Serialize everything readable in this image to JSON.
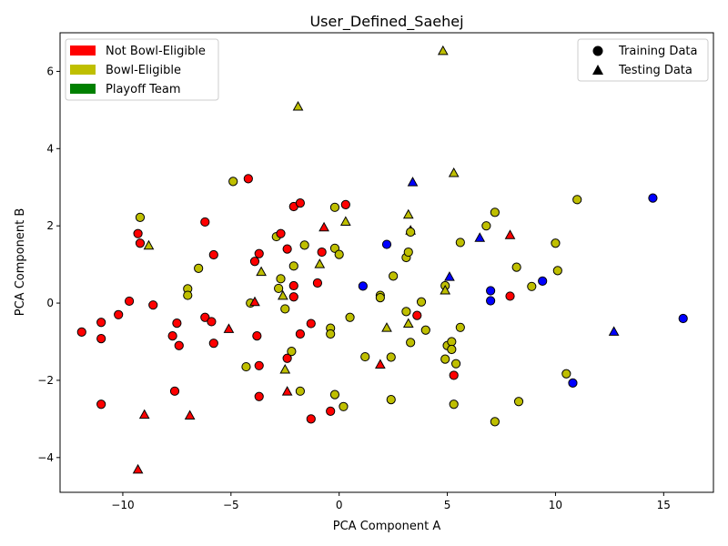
{
  "chart_data": {
    "type": "scatter",
    "title": "User_Defined_Saehej",
    "xlabel": "PCA Component A",
    "ylabel": "PCA Component B",
    "xlim": [
      -12.9,
      17.3
    ],
    "ylim": [
      -4.9,
      7.0
    ],
    "x_ticks": [
      -10,
      -5,
      0,
      5,
      10,
      15
    ],
    "y_ticks": [
      -4,
      -2,
      0,
      2,
      4,
      6
    ],
    "x_tick_labels": [
      "−10",
      "−5",
      "0",
      "5",
      "10",
      "15"
    ],
    "y_tick_labels": [
      "−4",
      "−2",
      "0",
      "2",
      "4",
      "6"
    ],
    "grid": false,
    "colors": {
      "not_bowl_eligible": "#ff0000",
      "bowl_eligible": "#bfbf00",
      "playoff_team": "#008000",
      "blue_class": "#0000ff",
      "marker_edge": "#000000"
    },
    "legend_classes": {
      "placement": "top-left",
      "entries": [
        {
          "label": "Not Bowl-Eligible",
          "color": "#ff0000"
        },
        {
          "label": "Bowl-Eligible",
          "color": "#bfbf00"
        },
        {
          "label": "Playoff Team",
          "color": "#008000"
        }
      ]
    },
    "legend_markers": {
      "placement": "top-right",
      "entries": [
        {
          "label": "Training Data",
          "marker": "circle"
        },
        {
          "label": "Testing Data",
          "marker": "triangle"
        }
      ]
    },
    "points": [
      {
        "x": -11.9,
        "y": -0.75,
        "c": "red",
        "m": "o"
      },
      {
        "x": -11.0,
        "y": -0.5,
        "c": "red",
        "m": "o"
      },
      {
        "x": -11.0,
        "y": -0.92,
        "c": "red",
        "m": "o"
      },
      {
        "x": -11.0,
        "y": -2.62,
        "c": "red",
        "m": "o"
      },
      {
        "x": -10.2,
        "y": -0.3,
        "c": "red",
        "m": "o"
      },
      {
        "x": -9.7,
        "y": 0.05,
        "c": "red",
        "m": "o"
      },
      {
        "x": -9.3,
        "y": 1.8,
        "c": "red",
        "m": "o"
      },
      {
        "x": -9.2,
        "y": 1.55,
        "c": "red",
        "m": "o"
      },
      {
        "x": -9.2,
        "y": 2.22,
        "c": "yellow",
        "m": "o"
      },
      {
        "x": -8.8,
        "y": 1.48,
        "c": "yellow",
        "m": "^"
      },
      {
        "x": -8.6,
        "y": -0.05,
        "c": "red",
        "m": "o"
      },
      {
        "x": -9.0,
        "y": -2.9,
        "c": "red",
        "m": "^"
      },
      {
        "x": -9.3,
        "y": -4.32,
        "c": "red",
        "m": "^"
      },
      {
        "x": -7.7,
        "y": -0.85,
        "c": "red",
        "m": "o"
      },
      {
        "x": -7.6,
        "y": -2.28,
        "c": "red",
        "m": "o"
      },
      {
        "x": -7.5,
        "y": -0.52,
        "c": "red",
        "m": "o"
      },
      {
        "x": -7.4,
        "y": -1.1,
        "c": "red",
        "m": "o"
      },
      {
        "x": -7.0,
        "y": 0.37,
        "c": "yellow",
        "m": "o"
      },
      {
        "x": -7.0,
        "y": 0.2,
        "c": "yellow",
        "m": "o"
      },
      {
        "x": -6.9,
        "y": -2.92,
        "c": "red",
        "m": "^"
      },
      {
        "x": -6.5,
        "y": 0.9,
        "c": "yellow",
        "m": "o"
      },
      {
        "x": -6.2,
        "y": 2.1,
        "c": "red",
        "m": "o"
      },
      {
        "x": -6.2,
        "y": -0.37,
        "c": "red",
        "m": "o"
      },
      {
        "x": -5.9,
        "y": -0.48,
        "c": "red",
        "m": "o"
      },
      {
        "x": -5.8,
        "y": 1.25,
        "c": "red",
        "m": "o"
      },
      {
        "x": -5.8,
        "y": -1.04,
        "c": "red",
        "m": "o"
      },
      {
        "x": -5.1,
        "y": -0.68,
        "c": "red",
        "m": "^"
      },
      {
        "x": -4.9,
        "y": 3.15,
        "c": "yellow",
        "m": "o"
      },
      {
        "x": -4.3,
        "y": -1.65,
        "c": "yellow",
        "m": "o"
      },
      {
        "x": -4.2,
        "y": 3.22,
        "c": "red",
        "m": "o"
      },
      {
        "x": -4.1,
        "y": 0.0,
        "c": "yellow",
        "m": "o"
      },
      {
        "x": -3.9,
        "y": 1.08,
        "c": "red",
        "m": "o"
      },
      {
        "x": -3.8,
        "y": -0.85,
        "c": "red",
        "m": "o"
      },
      {
        "x": -3.9,
        "y": 0.02,
        "c": "red",
        "m": "^"
      },
      {
        "x": -3.7,
        "y": 1.28,
        "c": "red",
        "m": "o"
      },
      {
        "x": -3.6,
        "y": 0.8,
        "c": "yellow",
        "m": "^"
      },
      {
        "x": -3.7,
        "y": -1.62,
        "c": "red",
        "m": "o"
      },
      {
        "x": -3.7,
        "y": -2.42,
        "c": "red",
        "m": "o"
      },
      {
        "x": -2.9,
        "y": 1.72,
        "c": "yellow",
        "m": "o"
      },
      {
        "x": -2.7,
        "y": 1.8,
        "c": "red",
        "m": "o"
      },
      {
        "x": -2.7,
        "y": 0.63,
        "c": "yellow",
        "m": "o"
      },
      {
        "x": -2.8,
        "y": 0.38,
        "c": "yellow",
        "m": "o"
      },
      {
        "x": -2.6,
        "y": 0.18,
        "c": "yellow",
        "m": "^"
      },
      {
        "x": -2.5,
        "y": -0.15,
        "c": "yellow",
        "m": "o"
      },
      {
        "x": -2.5,
        "y": -1.73,
        "c": "yellow",
        "m": "^"
      },
      {
        "x": -2.4,
        "y": 1.4,
        "c": "red",
        "m": "o"
      },
      {
        "x": -2.4,
        "y": -1.43,
        "c": "red",
        "m": "o"
      },
      {
        "x": -2.4,
        "y": -2.3,
        "c": "red",
        "m": "^"
      },
      {
        "x": -2.1,
        "y": 2.5,
        "c": "red",
        "m": "o"
      },
      {
        "x": -2.1,
        "y": 0.96,
        "c": "yellow",
        "m": "o"
      },
      {
        "x": -2.1,
        "y": 0.45,
        "c": "red",
        "m": "o"
      },
      {
        "x": -2.1,
        "y": 0.16,
        "c": "red",
        "m": "o"
      },
      {
        "x": -2.2,
        "y": -1.25,
        "c": "yellow",
        "m": "o"
      },
      {
        "x": -1.9,
        "y": 5.08,
        "c": "yellow",
        "m": "^"
      },
      {
        "x": -1.8,
        "y": 2.59,
        "c": "red",
        "m": "o"
      },
      {
        "x": -1.8,
        "y": -0.8,
        "c": "red",
        "m": "o"
      },
      {
        "x": -1.8,
        "y": -2.28,
        "c": "yellow",
        "m": "o"
      },
      {
        "x": -1.6,
        "y": 1.5,
        "c": "yellow",
        "m": "o"
      },
      {
        "x": -1.3,
        "y": -0.53,
        "c": "red",
        "m": "o"
      },
      {
        "x": -1.3,
        "y": -3.0,
        "c": "red",
        "m": "o"
      },
      {
        "x": -1.0,
        "y": 0.52,
        "c": "red",
        "m": "o"
      },
      {
        "x": -0.9,
        "y": 1.0,
        "c": "yellow",
        "m": "^"
      },
      {
        "x": -0.8,
        "y": 1.32,
        "c": "red",
        "m": "o"
      },
      {
        "x": -0.7,
        "y": 1.95,
        "c": "red",
        "m": "^"
      },
      {
        "x": -0.4,
        "y": -0.65,
        "c": "yellow",
        "m": "o"
      },
      {
        "x": -0.4,
        "y": -0.8,
        "c": "yellow",
        "m": "o"
      },
      {
        "x": -0.4,
        "y": -2.8,
        "c": "red",
        "m": "o"
      },
      {
        "x": -0.2,
        "y": 2.48,
        "c": "yellow",
        "m": "o"
      },
      {
        "x": -0.2,
        "y": 1.42,
        "c": "yellow",
        "m": "o"
      },
      {
        "x": -0.2,
        "y": -2.37,
        "c": "yellow",
        "m": "o"
      },
      {
        "x": 0.0,
        "y": 1.26,
        "c": "yellow",
        "m": "o"
      },
      {
        "x": 0.2,
        "y": -2.68,
        "c": "yellow",
        "m": "o"
      },
      {
        "x": 0.3,
        "y": 2.55,
        "c": "red",
        "m": "o"
      },
      {
        "x": 0.3,
        "y": 2.1,
        "c": "yellow",
        "m": "^"
      },
      {
        "x": 0.5,
        "y": -0.37,
        "c": "yellow",
        "m": "o"
      },
      {
        "x": 1.1,
        "y": 0.44,
        "c": "blue",
        "m": "o"
      },
      {
        "x": 1.2,
        "y": -1.39,
        "c": "yellow",
        "m": "o"
      },
      {
        "x": 1.9,
        "y": 0.2,
        "c": "yellow",
        "m": "o"
      },
      {
        "x": 1.9,
        "y": 0.14,
        "c": "yellow",
        "m": "o"
      },
      {
        "x": 1.9,
        "y": -1.6,
        "c": "red",
        "m": "^"
      },
      {
        "x": 2.2,
        "y": 1.52,
        "c": "blue",
        "m": "o"
      },
      {
        "x": 2.2,
        "y": -0.65,
        "c": "yellow",
        "m": "^"
      },
      {
        "x": 2.4,
        "y": -1.4,
        "c": "yellow",
        "m": "o"
      },
      {
        "x": 2.4,
        "y": -2.5,
        "c": "yellow",
        "m": "o"
      },
      {
        "x": 2.5,
        "y": 0.7,
        "c": "yellow",
        "m": "o"
      },
      {
        "x": 3.1,
        "y": 1.18,
        "c": "yellow",
        "m": "o"
      },
      {
        "x": 3.2,
        "y": 2.28,
        "c": "yellow",
        "m": "^"
      },
      {
        "x": 3.2,
        "y": 1.32,
        "c": "yellow",
        "m": "o"
      },
      {
        "x": 3.1,
        "y": -0.22,
        "c": "yellow",
        "m": "o"
      },
      {
        "x": 3.3,
        "y": 1.87,
        "c": "red",
        "m": "^"
      },
      {
        "x": 3.2,
        "y": -0.54,
        "c": "yellow",
        "m": "^"
      },
      {
        "x": 3.3,
        "y": -1.02,
        "c": "yellow",
        "m": "o"
      },
      {
        "x": 3.4,
        "y": 3.12,
        "c": "blue",
        "m": "^"
      },
      {
        "x": 3.3,
        "y": 1.84,
        "c": "yellow",
        "m": "o"
      },
      {
        "x": 3.6,
        "y": -0.32,
        "c": "red",
        "m": "o"
      },
      {
        "x": 3.8,
        "y": 0.03,
        "c": "yellow",
        "m": "o"
      },
      {
        "x": 4.0,
        "y": -0.7,
        "c": "yellow",
        "m": "o"
      },
      {
        "x": 4.8,
        "y": 6.52,
        "c": "yellow",
        "m": "^"
      },
      {
        "x": 4.9,
        "y": 0.45,
        "c": "yellow",
        "m": "o"
      },
      {
        "x": 4.9,
        "y": 0.32,
        "c": "yellow",
        "m": "^"
      },
      {
        "x": 4.9,
        "y": -1.45,
        "c": "yellow",
        "m": "o"
      },
      {
        "x": 5.0,
        "y": -1.1,
        "c": "yellow",
        "m": "o"
      },
      {
        "x": 5.1,
        "y": 0.67,
        "c": "blue",
        "m": "^"
      },
      {
        "x": 5.2,
        "y": -1.0,
        "c": "yellow",
        "m": "o"
      },
      {
        "x": 5.2,
        "y": -1.2,
        "c": "yellow",
        "m": "o"
      },
      {
        "x": 5.3,
        "y": 3.36,
        "c": "yellow",
        "m": "^"
      },
      {
        "x": 5.3,
        "y": -1.87,
        "c": "red",
        "m": "o"
      },
      {
        "x": 5.3,
        "y": -2.62,
        "c": "yellow",
        "m": "o"
      },
      {
        "x": 5.4,
        "y": -1.57,
        "c": "yellow",
        "m": "o"
      },
      {
        "x": 5.6,
        "y": 1.57,
        "c": "yellow",
        "m": "o"
      },
      {
        "x": 5.6,
        "y": -0.63,
        "c": "yellow",
        "m": "o"
      },
      {
        "x": 6.5,
        "y": 1.68,
        "c": "blue",
        "m": "^"
      },
      {
        "x": 6.8,
        "y": 2.0,
        "c": "yellow",
        "m": "o"
      },
      {
        "x": 7.0,
        "y": 0.32,
        "c": "blue",
        "m": "o"
      },
      {
        "x": 7.0,
        "y": 0.06,
        "c": "blue",
        "m": "o"
      },
      {
        "x": 7.2,
        "y": 2.35,
        "c": "yellow",
        "m": "o"
      },
      {
        "x": 7.2,
        "y": -3.07,
        "c": "yellow",
        "m": "o"
      },
      {
        "x": 7.9,
        "y": 1.75,
        "c": "red",
        "m": "^"
      },
      {
        "x": 7.9,
        "y": 0.18,
        "c": "red",
        "m": "o"
      },
      {
        "x": 8.2,
        "y": 0.93,
        "c": "yellow",
        "m": "o"
      },
      {
        "x": 8.3,
        "y": -2.55,
        "c": "yellow",
        "m": "o"
      },
      {
        "x": 8.9,
        "y": 0.43,
        "c": "yellow",
        "m": "o"
      },
      {
        "x": 9.4,
        "y": 0.57,
        "c": "blue",
        "m": "o"
      },
      {
        "x": 10.0,
        "y": 1.55,
        "c": "yellow",
        "m": "o"
      },
      {
        "x": 10.1,
        "y": 0.84,
        "c": "yellow",
        "m": "o"
      },
      {
        "x": 10.5,
        "y": -1.83,
        "c": "yellow",
        "m": "o"
      },
      {
        "x": 10.8,
        "y": -2.07,
        "c": "blue",
        "m": "o"
      },
      {
        "x": 11.0,
        "y": 2.68,
        "c": "yellow",
        "m": "o"
      },
      {
        "x": 12.7,
        "y": -0.75,
        "c": "blue",
        "m": "^"
      },
      {
        "x": 14.5,
        "y": 2.72,
        "c": "blue",
        "m": "o"
      },
      {
        "x": 15.9,
        "y": -0.4,
        "c": "blue",
        "m": "o"
      }
    ]
  }
}
